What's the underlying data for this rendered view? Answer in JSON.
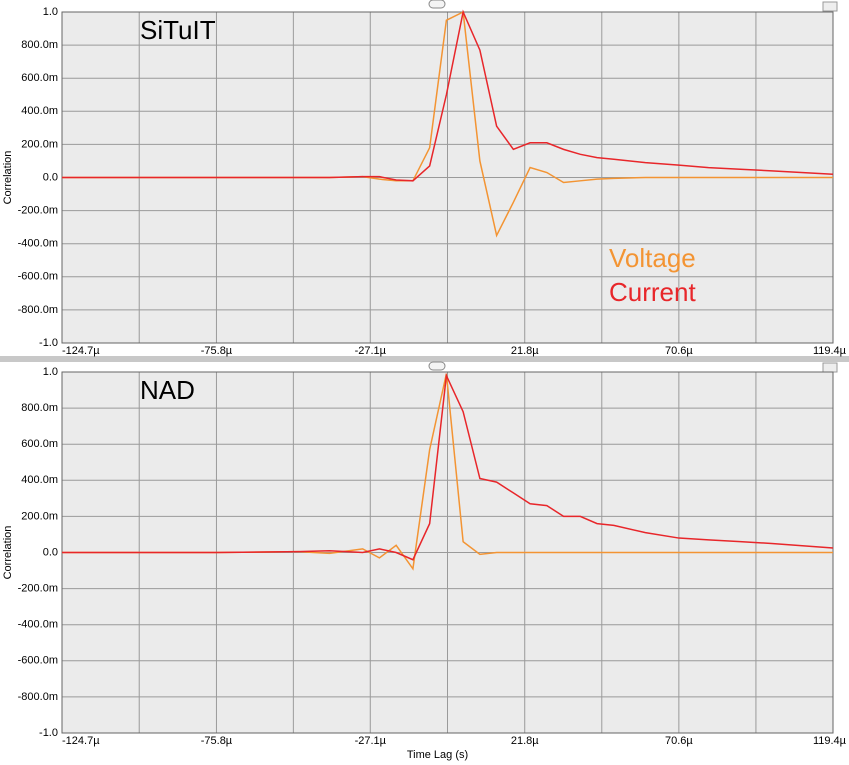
{
  "chart_data": [
    {
      "type": "line",
      "title": "SiTuIT",
      "y_label": "Correlation",
      "legend": "right",
      "grid": true,
      "xlim": [
        -0.0001247,
        0.0001194
      ],
      "xticks": [
        {
          "value": -0.0001247,
          "label": "-124.7µ"
        },
        {
          "value": -7.58e-05,
          "label": "-75.8µ"
        },
        {
          "value": -2.71e-05,
          "label": "-27.1µ"
        },
        {
          "value": 2.18e-05,
          "label": "21.8µ"
        },
        {
          "value": 7.06e-05,
          "label": "70.6µ"
        },
        {
          "value": 0.0001194,
          "label": "119.4µ"
        }
      ],
      "ylim": [
        -1,
        1
      ],
      "yticks": [
        {
          "value": 1,
          "label": "1.0"
        },
        {
          "value": 0.8,
          "label": "800.0m"
        },
        {
          "value": 0.6,
          "label": "600.0m"
        },
        {
          "value": 0.4,
          "label": "400.0m"
        },
        {
          "value": 0.2,
          "label": "200.0m"
        },
        {
          "value": 0,
          "label": "0.0"
        },
        {
          "value": -0.2,
          "label": "-200.0m"
        },
        {
          "value": -0.4,
          "label": "-400.0m"
        },
        {
          "value": -0.6,
          "label": "-600.0m"
        },
        {
          "value": -0.8,
          "label": "-800.0m"
        },
        {
          "value": -1,
          "label": "-1.0"
        }
      ],
      "x": [
        -0.0001247,
        -0.0001,
        -7.58e-05,
        -5e-05,
        -4e-05,
        -2.95e-05,
        -2.42e-05,
        -1.89e-05,
        -1.36e-05,
        -8.3e-06,
        -3e-06,
        2.3e-06,
        7.6e-06,
        1.29e-05,
        1.82e-05,
        2.35e-05,
        2.88e-05,
        3.41e-05,
        3.94e-05,
        4.47e-05,
        5e-05,
        6e-05,
        7.06e-05,
        8e-05,
        9e-05,
        0.0001,
        0.0001194
      ],
      "series": [
        {
          "name": "Voltage",
          "color": "#f39433",
          "values": [
            0,
            0,
            0,
            0,
            0,
            0.005,
            -0.01,
            -0.02,
            -0.02,
            0.18,
            0.95,
            1.0,
            0.1,
            -0.35,
            -0.15,
            0.06,
            0.03,
            -0.03,
            -0.02,
            -0.01,
            -0.005,
            0,
            0,
            0,
            0,
            0,
            0
          ]
        },
        {
          "name": "Current",
          "color": "#e8262a",
          "values": [
            0,
            0,
            0,
            0,
            0,
            0.005,
            0.005,
            -0.015,
            -0.02,
            0.07,
            0.5,
            1.0,
            0.77,
            0.31,
            0.17,
            0.21,
            0.21,
            0.17,
            0.14,
            0.12,
            0.11,
            0.09,
            0.075,
            0.06,
            0.05,
            0.04,
            0.02
          ]
        }
      ]
    },
    {
      "type": "line",
      "title": "NAD",
      "y_label": "Correlation",
      "x_label": "Time Lag (s)",
      "grid": true,
      "xlim": [
        -0.0001247,
        0.0001194
      ],
      "xticks": [
        {
          "value": -0.0001247,
          "label": "-124.7µ"
        },
        {
          "value": -7.58e-05,
          "label": "-75.8µ"
        },
        {
          "value": -2.71e-05,
          "label": "-27.1µ"
        },
        {
          "value": 2.18e-05,
          "label": "21.8µ"
        },
        {
          "value": 7.06e-05,
          "label": "70.6µ"
        },
        {
          "value": 0.0001194,
          "label": "119.4µ"
        }
      ],
      "ylim": [
        -1,
        1
      ],
      "yticks": [
        {
          "value": 1,
          "label": "1.0"
        },
        {
          "value": 0.8,
          "label": "800.0m"
        },
        {
          "value": 0.6,
          "label": "600.0m"
        },
        {
          "value": 0.4,
          "label": "400.0m"
        },
        {
          "value": 0.2,
          "label": "200.0m"
        },
        {
          "value": 0,
          "label": "0.0"
        },
        {
          "value": -0.2,
          "label": "-200.0m"
        },
        {
          "value": -0.4,
          "label": "-400.0m"
        },
        {
          "value": -0.6,
          "label": "-600.0m"
        },
        {
          "value": -0.8,
          "label": "-800.0m"
        },
        {
          "value": -1,
          "label": "-1.0"
        }
      ],
      "x": [
        -0.0001247,
        -0.0001,
        -7.58e-05,
        -5e-05,
        -4e-05,
        -2.95e-05,
        -2.42e-05,
        -1.89e-05,
        -1.36e-05,
        -8.3e-06,
        -3e-06,
        2.3e-06,
        7.6e-06,
        1.29e-05,
        1.82e-05,
        2.35e-05,
        2.88e-05,
        3.41e-05,
        3.94e-05,
        4.47e-05,
        5e-05,
        6e-05,
        7.06e-05,
        8e-05,
        9e-05,
        0.0001,
        0.0001194
      ],
      "series": [
        {
          "color": "#f39433",
          "values": [
            0,
            0,
            0,
            0.005,
            -0.005,
            0.02,
            -0.03,
            0.04,
            -0.09,
            0.57,
            0.99,
            0.06,
            -0.01,
            0,
            0,
            0,
            0,
            0,
            0,
            0,
            0,
            0,
            0,
            0,
            0,
            0,
            0
          ]
        },
        {
          "color": "#e8262a",
          "values": [
            0,
            0,
            0,
            0.005,
            0.01,
            0,
            0.02,
            0,
            -0.04,
            0.16,
            0.98,
            0.78,
            0.41,
            0.39,
            0.33,
            0.27,
            0.26,
            0.2,
            0.2,
            0.16,
            0.15,
            0.11,
            0.08,
            0.07,
            0.06,
            0.05,
            0.025
          ]
        }
      ]
    }
  ]
}
